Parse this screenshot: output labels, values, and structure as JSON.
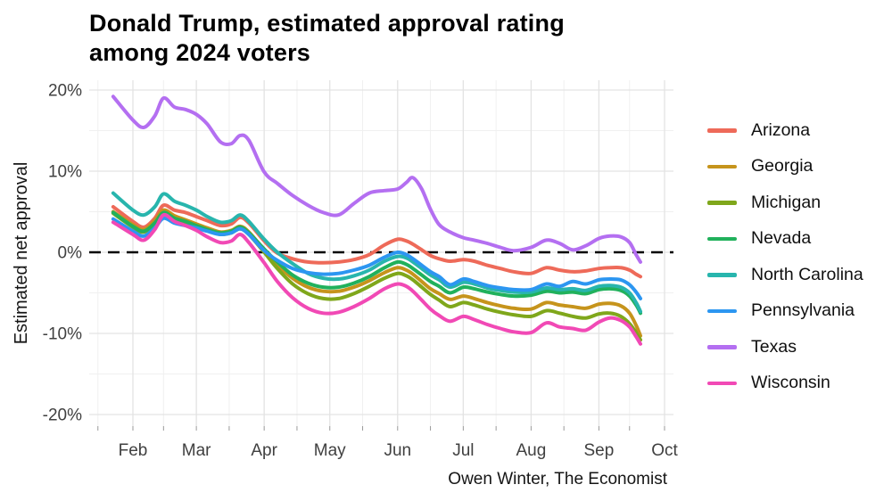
{
  "header": {
    "title_line1": "Donald Trump, estimated approval rating",
    "title_line2": "among 2024 voters"
  },
  "y_axis": {
    "label": "Estimated net approval"
  },
  "caption": "Owen Winter, The Economist",
  "chart_data": {
    "type": "line",
    "title": "Donald Trump, estimated approval rating among 2024 voters",
    "xlabel": "",
    "ylabel": "Estimated net approval",
    "ylim": [
      -20,
      20
    ],
    "grid": true,
    "legend_position": "right",
    "zero_line": {
      "style": "dashed",
      "color": "#000000"
    },
    "yticks": [
      {
        "value": 20,
        "label": "20%"
      },
      {
        "value": 10,
        "label": "10%"
      },
      {
        "value": 0,
        "label": "0%"
      },
      {
        "value": -10,
        "label": "-10%"
      },
      {
        "value": -20,
        "label": "-20%"
      }
    ],
    "yminor": [
      15,
      5,
      -5,
      -15
    ],
    "xticks": [
      {
        "label": "Feb",
        "date": "02-01"
      },
      {
        "label": "Mar",
        "date": "03-01"
      },
      {
        "label": "Apr",
        "date": "04-01"
      },
      {
        "label": "May",
        "date": "05-01"
      },
      {
        "label": "Jun",
        "date": "06-01"
      },
      {
        "label": "Jul",
        "date": "07-01"
      },
      {
        "label": "Aug",
        "date": "08-01"
      },
      {
        "label": "Sep",
        "date": "09-01"
      },
      {
        "label": "Oct",
        "date": "10-01"
      }
    ],
    "xminor_dates": [
      "01-16",
      "02-15",
      "03-16",
      "04-16",
      "05-16",
      "06-16",
      "07-16",
      "08-16",
      "09-15"
    ],
    "x_dates": [
      "01-23",
      "02-01",
      "02-06",
      "02-11",
      "02-15",
      "02-20",
      "02-25",
      "03-01",
      "03-06",
      "03-12",
      "03-17",
      "03-21",
      "03-25",
      "04-01",
      "04-07",
      "04-14",
      "04-21",
      "04-28",
      "05-05",
      "05-12",
      "05-19",
      "05-26",
      "06-01",
      "06-05",
      "06-08",
      "06-12",
      "06-16",
      "06-20",
      "06-25",
      "07-01",
      "07-06",
      "07-12",
      "07-18",
      "07-24",
      "08-01",
      "08-08",
      "08-14",
      "08-20",
      "08-26",
      "09-01",
      "09-06",
      "09-11",
      "09-15",
      "09-18",
      "09-20"
    ],
    "series": [
      {
        "name": "Arizona",
        "color": "#ee6a59",
        "values": [
          5.6,
          3.8,
          3.1,
          4.2,
          5.8,
          5.2,
          4.9,
          4.4,
          3.9,
          3.3,
          3.5,
          4.3,
          3.6,
          1.4,
          -0.1,
          -0.8,
          -1.2,
          -1.3,
          -1.2,
          -0.9,
          -0.3,
          0.9,
          1.6,
          1.4,
          1.0,
          0.3,
          -0.4,
          -0.8,
          -1.1,
          -0.9,
          -1.1,
          -1.6,
          -2.0,
          -2.4,
          -2.6,
          -1.9,
          -2.2,
          -2.4,
          -2.3,
          -2.0,
          -1.9,
          -1.9,
          -2.2,
          -2.7,
          -3.0
        ]
      },
      {
        "name": "Georgia",
        "color": "#c6941c",
        "values": [
          5.0,
          3.4,
          2.8,
          3.9,
          5.2,
          4.5,
          4.0,
          3.5,
          3.0,
          2.5,
          2.7,
          3.2,
          2.5,
          0.3,
          -1.5,
          -3.2,
          -4.3,
          -4.8,
          -4.8,
          -4.3,
          -3.5,
          -2.5,
          -1.9,
          -2.2,
          -2.7,
          -3.6,
          -4.5,
          -5.1,
          -5.8,
          -5.4,
          -5.7,
          -6.2,
          -6.6,
          -6.9,
          -7.0,
          -6.2,
          -6.5,
          -6.7,
          -6.9,
          -6.4,
          -6.3,
          -6.6,
          -7.5,
          -9.0,
          -10.3
        ]
      },
      {
        "name": "Michigan",
        "color": "#7fa71b",
        "values": [
          4.8,
          3.1,
          2.5,
          3.6,
          4.8,
          4.1,
          3.7,
          3.2,
          2.7,
          2.2,
          2.4,
          2.9,
          2.2,
          0.0,
          -2.0,
          -3.9,
          -5.1,
          -5.7,
          -5.7,
          -5.1,
          -4.2,
          -3.2,
          -2.6,
          -2.9,
          -3.4,
          -4.3,
          -5.2,
          -5.9,
          -6.7,
          -6.2,
          -6.5,
          -7.0,
          -7.4,
          -7.7,
          -7.9,
          -7.2,
          -7.5,
          -7.9,
          -8.1,
          -7.6,
          -7.5,
          -7.9,
          -8.8,
          -9.9,
          -10.8
        ]
      },
      {
        "name": "Nevada",
        "color": "#21b15c",
        "values": [
          4.9,
          3.2,
          2.6,
          3.6,
          4.9,
          4.2,
          3.8,
          3.3,
          2.8,
          2.4,
          2.6,
          3.1,
          2.4,
          0.4,
          -1.2,
          -2.8,
          -3.8,
          -4.3,
          -4.3,
          -3.8,
          -3.0,
          -1.9,
          -1.2,
          -1.5,
          -2.0,
          -2.8,
          -3.6,
          -4.2,
          -5.0,
          -4.3,
          -4.5,
          -4.9,
          -5.2,
          -5.4,
          -5.3,
          -4.8,
          -5.0,
          -4.9,
          -5.1,
          -4.6,
          -4.5,
          -4.7,
          -5.4,
          -6.5,
          -7.5
        ]
      },
      {
        "name": "North Carolina",
        "color": "#28b5ad",
        "values": [
          7.3,
          5.2,
          4.6,
          5.6,
          7.2,
          6.3,
          5.8,
          5.2,
          4.4,
          3.7,
          3.9,
          4.6,
          3.8,
          1.6,
          0.0,
          -1.4,
          -2.6,
          -3.2,
          -3.3,
          -2.9,
          -2.2,
          -1.1,
          -0.5,
          -0.7,
          -1.2,
          -2.0,
          -2.8,
          -3.4,
          -4.3,
          -3.7,
          -3.9,
          -4.4,
          -4.7,
          -4.9,
          -4.9,
          -4.4,
          -4.6,
          -4.5,
          -4.7,
          -4.2,
          -4.1,
          -4.3,
          -5.0,
          -6.2,
          -7.3
        ]
      },
      {
        "name": "Pennsylvania",
        "color": "#2c96f1",
        "values": [
          4.1,
          2.6,
          2.0,
          3.0,
          4.2,
          3.6,
          3.3,
          3.0,
          2.6,
          2.2,
          2.4,
          2.9,
          2.2,
          0.2,
          -1.0,
          -2.0,
          -2.5,
          -2.7,
          -2.6,
          -2.2,
          -1.6,
          -0.6,
          0.0,
          -0.3,
          -0.8,
          -1.6,
          -2.4,
          -3.0,
          -4.0,
          -3.3,
          -3.6,
          -4.1,
          -4.4,
          -4.6,
          -4.6,
          -3.9,
          -4.2,
          -3.6,
          -3.9,
          -3.4,
          -3.3,
          -3.4,
          -4.0,
          -4.9,
          -5.7
        ]
      },
      {
        "name": "Texas",
        "color": "#b46ff1",
        "values": [
          19.2,
          16.3,
          15.4,
          16.8,
          19.0,
          17.9,
          17.6,
          17.0,
          15.8,
          13.6,
          13.4,
          14.4,
          13.8,
          9.9,
          8.5,
          7.0,
          5.8,
          4.9,
          4.6,
          6.0,
          7.3,
          7.6,
          7.8,
          8.6,
          9.2,
          7.8,
          5.3,
          3.4,
          2.5,
          1.8,
          1.5,
          1.1,
          0.6,
          0.2,
          0.6,
          1.5,
          1.1,
          0.3,
          0.8,
          1.7,
          2.0,
          1.9,
          1.2,
          -0.3,
          -1.2
        ]
      },
      {
        "name": "Wisconsin",
        "color": "#f149b5",
        "values": [
          3.7,
          2.2,
          1.5,
          2.8,
          4.6,
          3.8,
          3.3,
          2.7,
          1.9,
          1.2,
          1.4,
          2.2,
          1.2,
          -1.3,
          -3.6,
          -5.6,
          -6.9,
          -7.5,
          -7.4,
          -6.7,
          -5.7,
          -4.5,
          -3.9,
          -4.2,
          -4.8,
          -5.9,
          -7.0,
          -7.8,
          -8.5,
          -7.9,
          -8.3,
          -8.9,
          -9.4,
          -9.8,
          -9.9,
          -8.7,
          -9.2,
          -9.4,
          -9.6,
          -8.6,
          -8.1,
          -8.4,
          -9.2,
          -10.4,
          -11.3
        ]
      }
    ]
  },
  "style_colors": {
    "grid_major": "#e3e3e3",
    "grid_minor": "#f0f0f0",
    "tick_label": "#404040",
    "axis_tick": "#9a9a9a"
  }
}
